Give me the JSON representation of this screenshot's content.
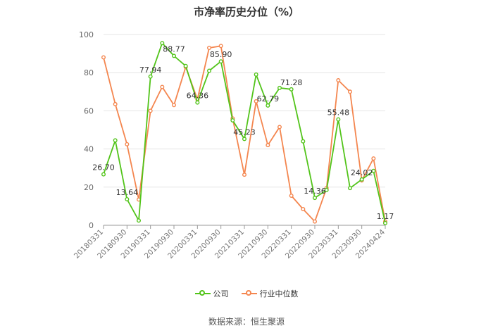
{
  "chart_data": {
    "type": "line",
    "title": "市净率历史分位（%）",
    "ylim": [
      0,
      100
    ],
    "yticks": [
      0,
      20,
      40,
      60,
      80,
      100
    ],
    "grid": true,
    "legend_position": "bottom",
    "x": [
      "20180331",
      "20180630",
      "20180930",
      "20181231",
      "20190331",
      "20190630",
      "20190930",
      "20191231",
      "20200331",
      "20200630",
      "20200930",
      "20201231",
      "20210331",
      "20210630",
      "20210930",
      "20211231",
      "20220331",
      "20220630",
      "20220930",
      "20221231",
      "20230331",
      "20230630",
      "20230930",
      "20231231",
      "20240424"
    ],
    "xtick_labels": [
      "20180331",
      "20180930",
      "20190331",
      "20190930",
      "20200331",
      "20200930",
      "20210331",
      "20210930",
      "20220331",
      "20220930",
      "20230331",
      "20230930",
      "20240424"
    ],
    "series": [
      {
        "name": "公司",
        "color": "#52c41a",
        "values": [
          26.7,
          44.5,
          13.64,
          2.5,
          77.94,
          95.5,
          88.77,
          83.5,
          64.36,
          81.0,
          85.9,
          55.0,
          45.23,
          79.0,
          62.79,
          72.0,
          71.28,
          44.0,
          14.36,
          18.5,
          55.48,
          19.5,
          24.02,
          28.5,
          1.17
        ],
        "data_labels": {
          "0": "26.70",
          "2": "13.64",
          "4": "77.94",
          "6": "88.77",
          "8": "64.36",
          "10": "85.90",
          "12": "45.23",
          "14": "62.79",
          "16": "71.28",
          "18": "14.36",
          "20": "55.48",
          "22": "24.02",
          "24": "1.17"
        }
      },
      {
        "name": "行业中位数",
        "color": "#f4864f",
        "values": [
          88.0,
          63.5,
          42.5,
          13.5,
          60.0,
          72.5,
          63.0,
          83.0,
          66.0,
          93.0,
          94.0,
          56.0,
          26.5,
          65.0,
          42.0,
          51.5,
          15.5,
          8.5,
          2.0,
          19.5,
          76.0,
          70.0,
          23.5,
          35.0,
          2.0
        ]
      }
    ]
  },
  "legend": [
    {
      "label": "公司",
      "color": "#52c41a"
    },
    {
      "label": "行业中位数",
      "color": "#f4864f"
    }
  ],
  "footer": {
    "source": "数据来源：恒生聚源"
  }
}
